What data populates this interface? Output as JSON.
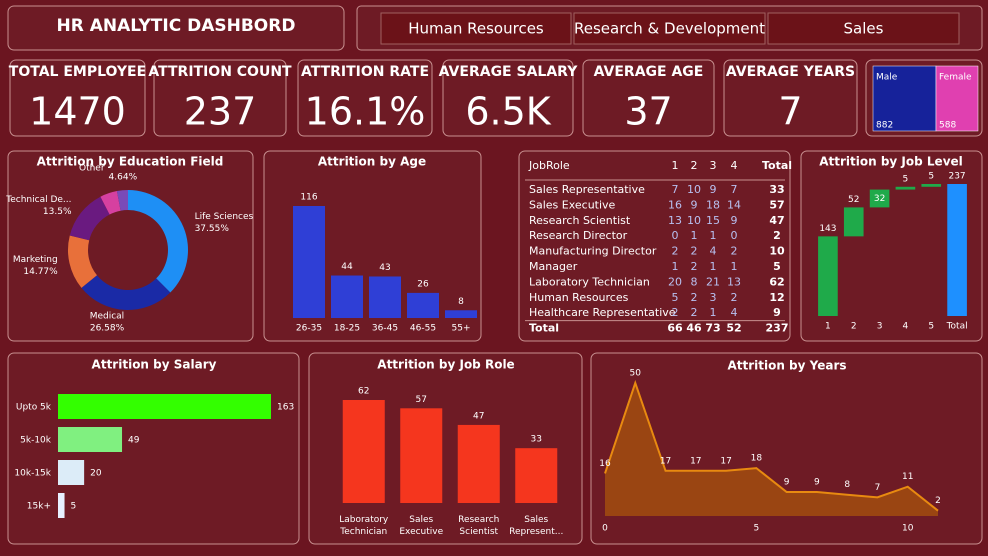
{
  "header": {
    "title": "HR ANALYTIC DASHBORD"
  },
  "tabs": [
    "Human Resources",
    "Research & Development",
    "Sales"
  ],
  "kpis": [
    {
      "label": "TOTAL EMPLOYEE",
      "value": 1470
    },
    {
      "label": "ATTRITION COUNT",
      "value": 237
    },
    {
      "label": "ATTRITION RATE",
      "value": "16.1%"
    },
    {
      "label": "AVERAGE SALARY",
      "value": "6.5K"
    },
    {
      "label": "AVERAGE AGE",
      "value": 37
    },
    {
      "label": "AVERAGE YEARS",
      "value": 7
    }
  ],
  "gender": {
    "type": "treemap",
    "categories": [
      "Male",
      "Female"
    ],
    "values": [
      882,
      588
    ],
    "colors": [
      "#16229a",
      "#e040b0"
    ]
  },
  "chart_data": [
    {
      "type": "donut",
      "title": "Attrition by Education Field",
      "categories": [
        "Life Sciences",
        "Medical",
        "Marketing",
        "Technical De...",
        "Other",
        null
      ],
      "values": [
        37.55,
        26.58,
        14.77,
        13.5,
        4.64,
        2.96
      ],
      "value_labels": [
        "37.55%",
        "26.58%",
        "14.77%",
        "13.5%",
        "4.64%",
        null
      ],
      "colors": [
        "#1e8ff5",
        "#1a2aa6",
        "#e8703a",
        "#6a1a80",
        "#d640a0",
        "#7a4ab8"
      ]
    },
    {
      "type": "bar",
      "title": "Attrition by Age",
      "categories": [
        "26-35",
        "18-25",
        "36-45",
        "46-55",
        "55+"
      ],
      "values": [
        116,
        44,
        43,
        26,
        8
      ],
      "color": "#2f3fd6"
    },
    {
      "type": "waterfall",
      "title": "Attrition by Job Level",
      "categories": [
        "1",
        "2",
        "3",
        "4",
        "5",
        "Total"
      ],
      "values": [
        143,
        52,
        32,
        5,
        5,
        237
      ],
      "color": "#1faa4a",
      "total_color": "#1e90ff"
    },
    {
      "type": "hbar",
      "title": "Attrition by Salary",
      "categories": [
        "Upto 5k",
        "5k-10k",
        "10k-15k",
        "15k+"
      ],
      "values": [
        163,
        49,
        20,
        5
      ],
      "colors": [
        "#33ff00",
        "#80f080",
        "#dcecf8",
        "#e8f0ff"
      ]
    },
    {
      "type": "bar",
      "title": "Attrition by Job Role",
      "categories": [
        "Laboratory Technician",
        "Sales Executive",
        "Research Scientist",
        "Sales Represent..."
      ],
      "values": [
        62,
        57,
        47,
        33
      ],
      "color": "#f5361e"
    },
    {
      "type": "area",
      "title": "Attrition by Years",
      "x": [
        0,
        1,
        2,
        3,
        4,
        5,
        6,
        7,
        8,
        9,
        10,
        11
      ],
      "values": [
        16,
        50,
        17,
        17,
        17,
        18,
        9,
        9,
        8,
        7,
        11,
        2
      ],
      "color": "#e88a10",
      "xlim": [
        0,
        11
      ],
      "xticks": [
        0,
        5,
        10
      ]
    }
  ],
  "table": {
    "columns": [
      "JobRole",
      "1",
      "2",
      "3",
      "4",
      "Total"
    ],
    "rows": [
      [
        "Sales Representative",
        7,
        10,
        9,
        7,
        33
      ],
      [
        "Sales Executive",
        16,
        9,
        18,
        14,
        57
      ],
      [
        "Research Scientist",
        13,
        10,
        15,
        9,
        47
      ],
      [
        "Research Director",
        0,
        1,
        1,
        0,
        2
      ],
      [
        "Manufacturing Director",
        2,
        2,
        4,
        2,
        10
      ],
      [
        "Manager",
        1,
        2,
        1,
        1,
        5
      ],
      [
        "Laboratory Technician",
        20,
        8,
        21,
        13,
        62
      ],
      [
        "Human Resources",
        5,
        2,
        3,
        2,
        12
      ],
      [
        "Healthcare Representative",
        2,
        2,
        1,
        4,
        9
      ],
      [
        "Total",
        66,
        46,
        73,
        52,
        237
      ]
    ]
  }
}
